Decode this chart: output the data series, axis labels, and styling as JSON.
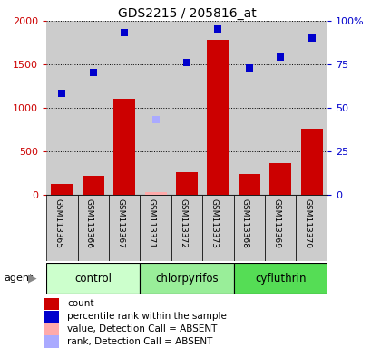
{
  "title": "GDS2215 / 205816_at",
  "samples": [
    "GSM113365",
    "GSM113366",
    "GSM113367",
    "GSM113371",
    "GSM113372",
    "GSM113373",
    "GSM113368",
    "GSM113369",
    "GSM113370"
  ],
  "bar_values": [
    130,
    220,
    1100,
    30,
    260,
    1780,
    240,
    360,
    760
  ],
  "bar_absent": [
    false,
    false,
    false,
    true,
    false,
    false,
    false,
    false,
    false
  ],
  "blue_values": [
    1170,
    1410,
    1870,
    860,
    1520,
    1910,
    1460,
    1580,
    1800
  ],
  "blue_absent": [
    false,
    false,
    false,
    true,
    false,
    false,
    false,
    false,
    false
  ],
  "ylim_left": [
    0,
    2000
  ],
  "yticks_left": [
    0,
    500,
    1000,
    1500,
    2000
  ],
  "ytick_labels_left": [
    "0",
    "500",
    "1000",
    "1500",
    "2000"
  ],
  "ytick_labels_right": [
    "0",
    "25",
    "50",
    "75",
    "100%"
  ],
  "left_axis_color": "#cc0000",
  "right_axis_color": "#0000cc",
  "bar_color": "#cc0000",
  "bar_absent_color": "#ffaaaa",
  "dot_color": "#0000cc",
  "dot_absent_color": "#aaaaff",
  "group_names": [
    "control",
    "chlorpyrifos",
    "cyfluthrin"
  ],
  "group_starts": [
    0,
    3,
    6
  ],
  "group_ends": [
    3,
    6,
    9
  ],
  "group_colors": [
    "#ccffcc",
    "#99ee99",
    "#55dd55"
  ],
  "sample_bg_color": "#cccccc",
  "bg_color": "#ffffff",
  "legend_items": [
    {
      "color": "#cc0000",
      "label": "count"
    },
    {
      "color": "#0000cc",
      "label": "percentile rank within the sample"
    },
    {
      "color": "#ffaaaa",
      "label": "value, Detection Call = ABSENT"
    },
    {
      "color": "#aaaaff",
      "label": "rank, Detection Call = ABSENT"
    }
  ]
}
